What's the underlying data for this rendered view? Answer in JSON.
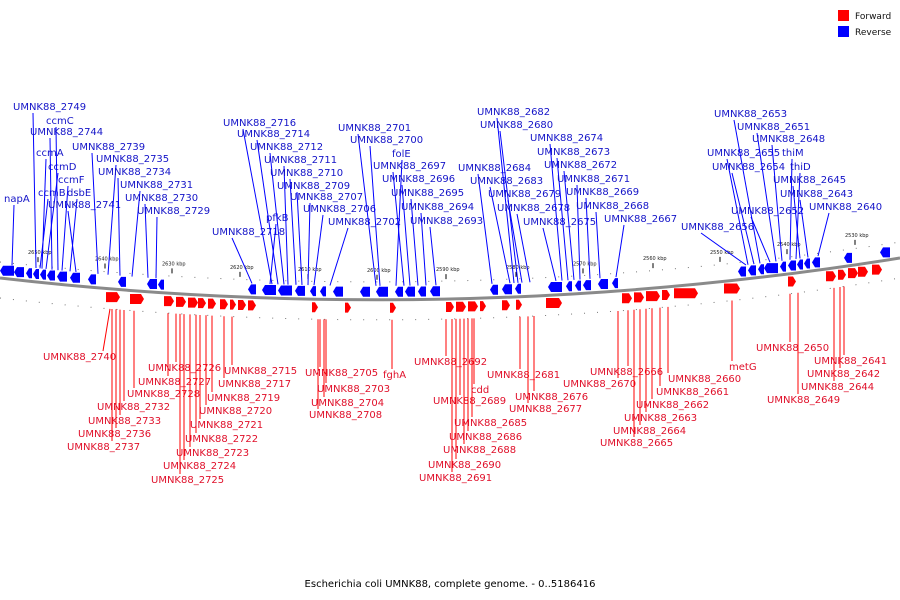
{
  "caption": "Escherichia coli UMNK88, complete genome. - 0..5186416",
  "legend": {
    "forward_label": "Forward",
    "reverse_label": "Reverse",
    "forward_color": "#ff0000",
    "reverse_color": "#0000ff"
  },
  "scale_ticks": [
    "2650 kbp",
    "2640 kbp",
    "2630 kbp",
    "2620 kbp",
    "2610 kbp",
    "2600 kbp",
    "2590 kbp",
    "2580 kbp",
    "2570 kbp",
    "2560 kbp",
    "2550 kbp",
    "2540 kbp",
    "2530 kbp"
  ],
  "reverse_genes": [
    "napA",
    "ccmB",
    "ccmD",
    "ccmA",
    "ccmC",
    "UMNK88_2749",
    "UMNK88_2744",
    "ccmF",
    "dsbE",
    "UMNK88_2741",
    "UMNK88_2739",
    "UMNK88_2735",
    "UMNK88_2734",
    "UMNK88_2731",
    "UMNK88_2730",
    "UMNK88_2729",
    "UMNK88_2718",
    "pfkB",
    "UMNK88_2716",
    "UMNK88_2714",
    "UMNK88_2712",
    "UMNK88_2711",
    "UMNK88_2710",
    "UMNK88_2709",
    "UMNK88_2707",
    "UMNK88_2706",
    "UMNK88_2702",
    "UMNK88_2701",
    "UMNK88_2700",
    "folE",
    "UMNK88_2697",
    "UMNK88_2696",
    "UMNK88_2695",
    "UMNK88_2694",
    "UMNK88_2693",
    "UMNK88_2684",
    "UMNK88_2683",
    "UMNK88_2682",
    "UMNK88_2680",
    "UMNK88_2679",
    "UMNK88_2678",
    "UMNK88_2675",
    "UMNK88_2674",
    "UMNK88_2673",
    "UMNK88_2672",
    "UMNK88_2671",
    "UMNK88_2669",
    "UMNK88_2668",
    "UMNK88_2667",
    "UMNK88_2656",
    "UMNK88_2655",
    "UMNK88_2654",
    "UMNK88_2653",
    "UMNK88_2652",
    "UMNK88_2651",
    "UMNK88_2648",
    "thiM",
    "thiD",
    "UMNK88_2645",
    "UMNK88_2643",
    "UMNK88_2640"
  ],
  "forward_genes": [
    "UMNK88_2740",
    "UMNK88_2737",
    "UMNK88_2736",
    "UMNK88_2733",
    "UMNK88_2732",
    "UMNK88_2728",
    "UMNK88_2727",
    "UMNK88_2726",
    "UMNK88_2725",
    "UMNK88_2724",
    "UMNK88_2723",
    "UMNK88_2722",
    "UMNK88_2721",
    "UMNK88_2720",
    "UMNK88_2719",
    "UMNK88_2717",
    "UMNK88_2715",
    "UMNK88_2708",
    "UMNK88_2705",
    "UMNK88_2704",
    "UMNK88_2703",
    "fghA",
    "UMNK88_2692",
    "UMNK88_2691",
    "UMNK88_2690",
    "UMNK88_2689",
    "UMNK88_2688",
    "UMNK88_2686",
    "UMNK88_2685",
    "cdd",
    "UMNK88_2681",
    "UMNK88_2677",
    "UMNK88_2676",
    "UMNK88_2670",
    "UMNK88_2666",
    "UMNK88_2665",
    "UMNK88_2664",
    "UMNK88_2663",
    "UMNK88_2662",
    "UMNK88_2661",
    "UMNK88_2660",
    "metG",
    "UMNK88_2650",
    "UMNK88_2649",
    "UMNK88_2644",
    "UMNK88_2642",
    "UMNK88_2641"
  ]
}
